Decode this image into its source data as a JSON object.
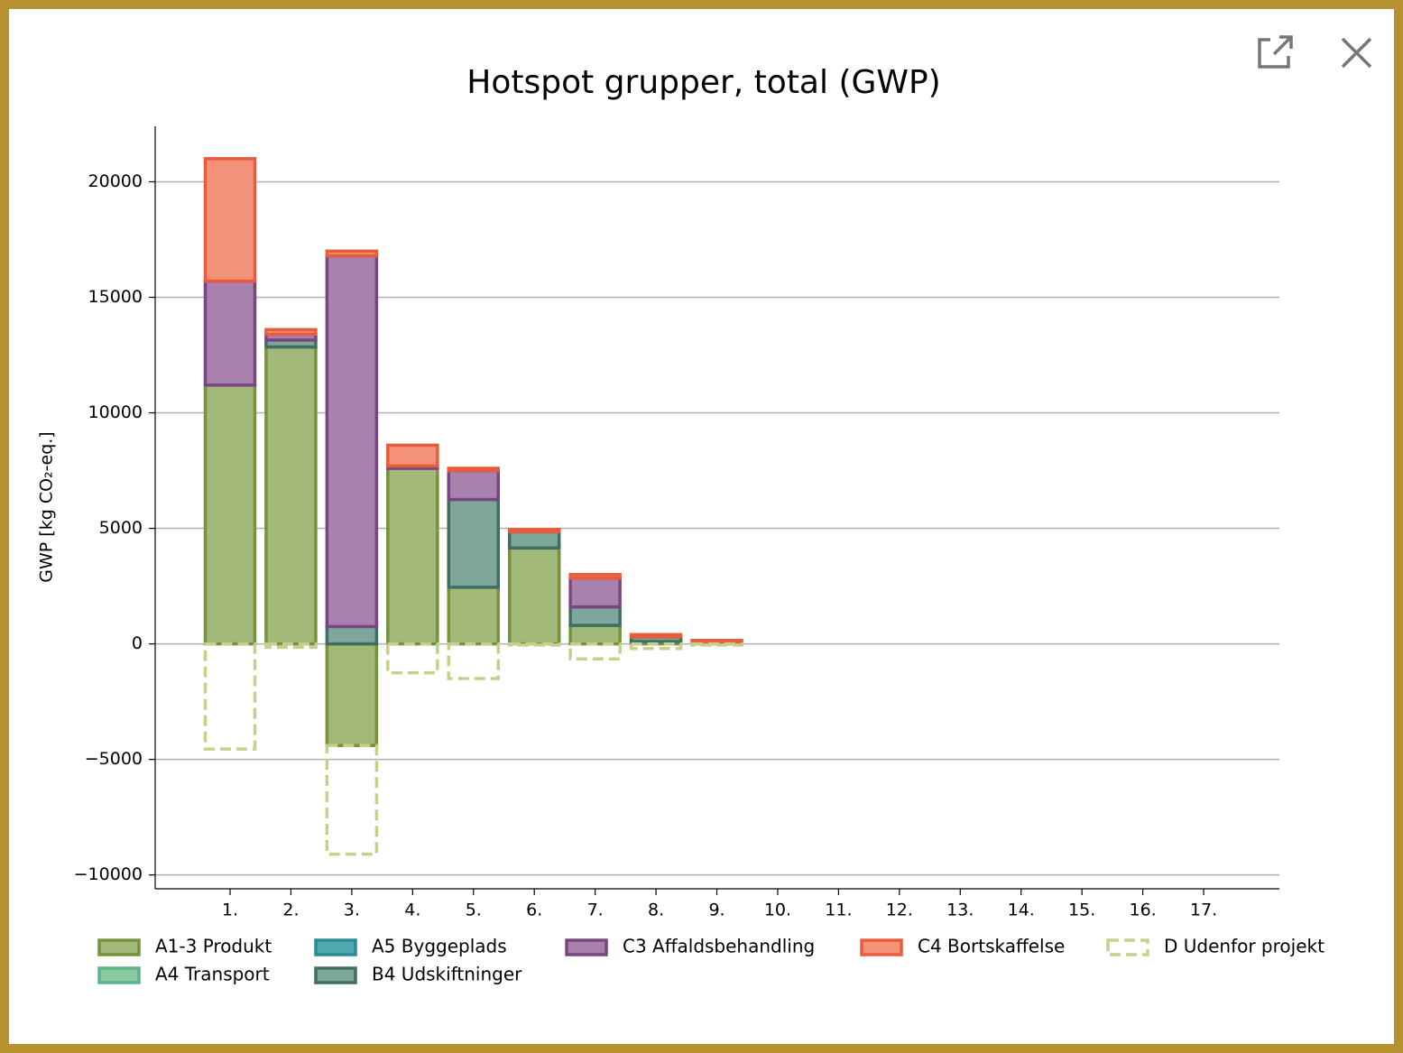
{
  "chart_data": {
    "type": "bar",
    "title": "Hotspot grupper, total (GWP)",
    "y_label": "GWP [kg CO₂-eq.]",
    "categories": [
      "1.",
      "2.",
      "3.",
      "4.",
      "5.",
      "6.",
      "7.",
      "8.",
      "9.",
      "10.",
      "11.",
      "12.",
      "13.",
      "14.",
      "15.",
      "16.",
      "17."
    ],
    "series": [
      {
        "name": "A1-3 Produkt",
        "color": "#a3b97a",
        "edge": "#76923c",
        "values": [
          11200,
          12850,
          -4400,
          7600,
          2450,
          4150,
          800,
          100,
          50,
          0,
          0,
          0,
          0,
          0,
          0,
          0,
          0
        ]
      },
      {
        "name": "A4 Transport",
        "color": "#8ccaa0",
        "edge": "#5bb38a",
        "values": [
          0,
          0,
          0,
          0,
          0,
          0,
          0,
          0,
          0,
          0,
          0,
          0,
          0,
          0,
          0,
          0,
          0
        ]
      },
      {
        "name": "A5 Byggeplads",
        "color": "#4fa8b0",
        "edge": "#2a8c96",
        "values": [
          0,
          0,
          0,
          0,
          0,
          0,
          0,
          0,
          0,
          0,
          0,
          0,
          0,
          0,
          0,
          0,
          0
        ]
      },
      {
        "name": "B4 Udskiftninger",
        "color": "#7ea69a",
        "edge": "#3d6f63",
        "values": [
          0,
          300,
          750,
          0,
          3800,
          700,
          800,
          200,
          0,
          0,
          0,
          0,
          0,
          0,
          0,
          0,
          0
        ]
      },
      {
        "name": "C3 Affaldsbehandling",
        "color": "#a882ad",
        "edge": "#7a4682",
        "values": [
          4500,
          250,
          16050,
          100,
          1250,
          0,
          1250,
          0,
          0,
          0,
          0,
          0,
          0,
          0,
          0,
          0,
          0
        ]
      },
      {
        "name": "C4 Bortskaffelse",
        "color": "#f4927a",
        "edge": "#e85c3c",
        "values": [
          5300,
          200,
          200,
          900,
          100,
          100,
          150,
          100,
          100,
          0,
          0,
          0,
          0,
          0,
          0,
          0,
          0
        ]
      },
      {
        "name": "D Udenfor projekt",
        "color": "none",
        "edge": "#c5d08a",
        "dashed": true,
        "values": [
          -4550,
          -150,
          -4700,
          -1250,
          -1500,
          -50,
          -650,
          -200,
          -50,
          0,
          0,
          0,
          0,
          0,
          0,
          0,
          0
        ]
      }
    ],
    "ylim": [
      -10600,
      22400
    ],
    "yticks": [
      {
        "value": -10000,
        "label": "−10000"
      },
      {
        "value": -5000,
        "label": "−5000"
      },
      0,
      5000,
      10000,
      15000,
      20000
    ],
    "grid": true
  }
}
